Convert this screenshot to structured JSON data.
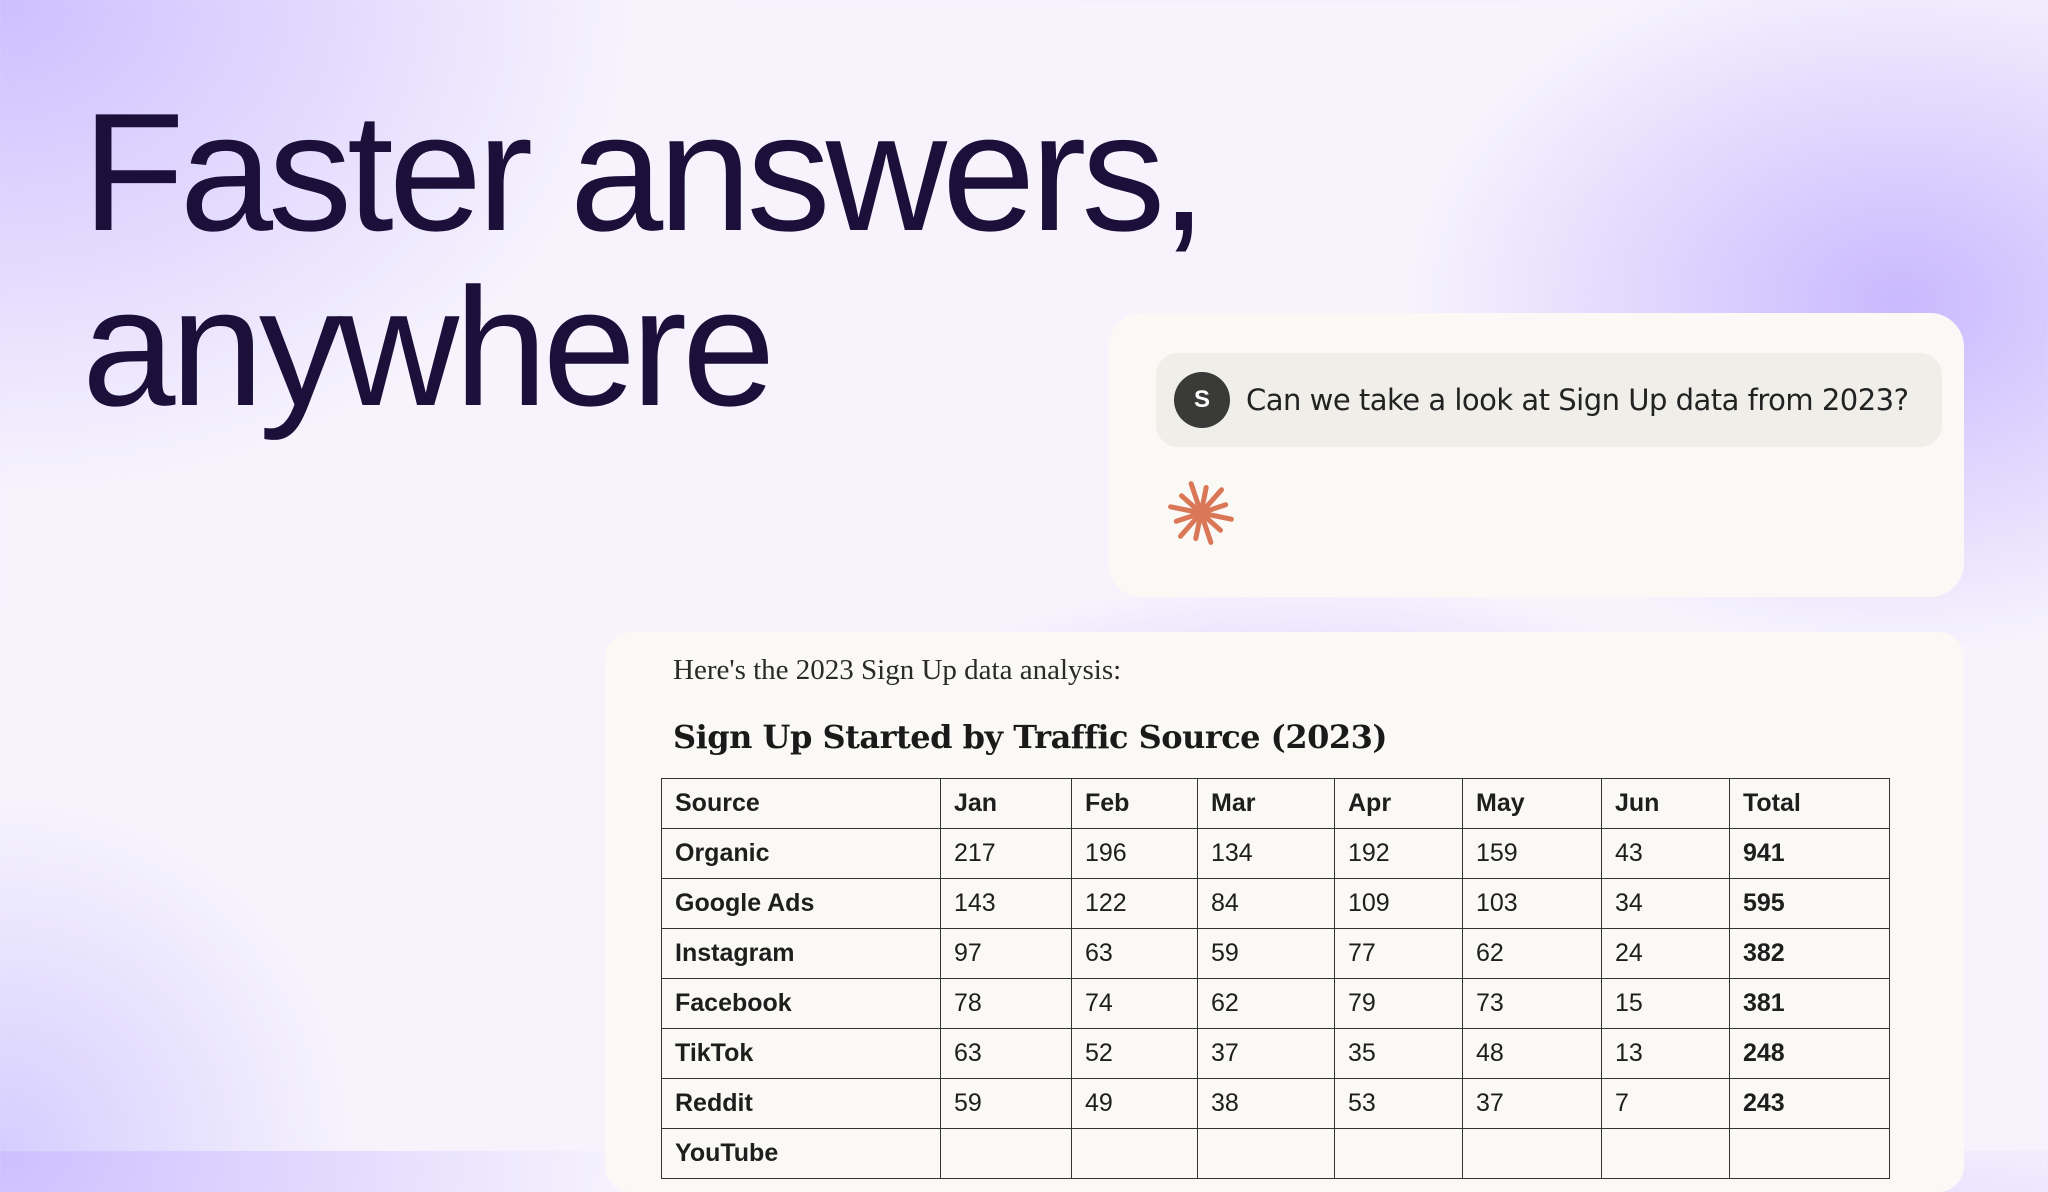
{
  "headline": {
    "line1": "Faster answers,",
    "line2": "anywhere"
  },
  "chat": {
    "avatar_initial": "S",
    "message": "Can we take a look at Sign Up data from 2023?",
    "assistant_icon": "spark-asterisk-icon",
    "accent": "#d97757"
  },
  "response": {
    "intro": "Here's the 2023 Sign Up data analysis:",
    "title": "Sign Up Started by Traffic Source (2023)",
    "columns": [
      "Source",
      "Jan",
      "Feb",
      "Mar",
      "Apr",
      "May",
      "Jun",
      "Total"
    ],
    "rows": [
      [
        "Organic",
        "217",
        "196",
        "134",
        "192",
        "159",
        "43",
        "941"
      ],
      [
        "Google Ads",
        "143",
        "122",
        "84",
        "109",
        "103",
        "34",
        "595"
      ],
      [
        "Instagram",
        "97",
        "63",
        "59",
        "77",
        "62",
        "24",
        "382"
      ],
      [
        "Facebook",
        "78",
        "74",
        "62",
        "79",
        "73",
        "15",
        "381"
      ],
      [
        "TikTok",
        "63",
        "52",
        "37",
        "35",
        "48",
        "13",
        "248"
      ],
      [
        "Reddit",
        "59",
        "49",
        "38",
        "53",
        "37",
        "7",
        "243"
      ],
      [
        "YouTube",
        "",
        "",
        "",
        "",
        "",
        "",
        ""
      ]
    ]
  }
}
